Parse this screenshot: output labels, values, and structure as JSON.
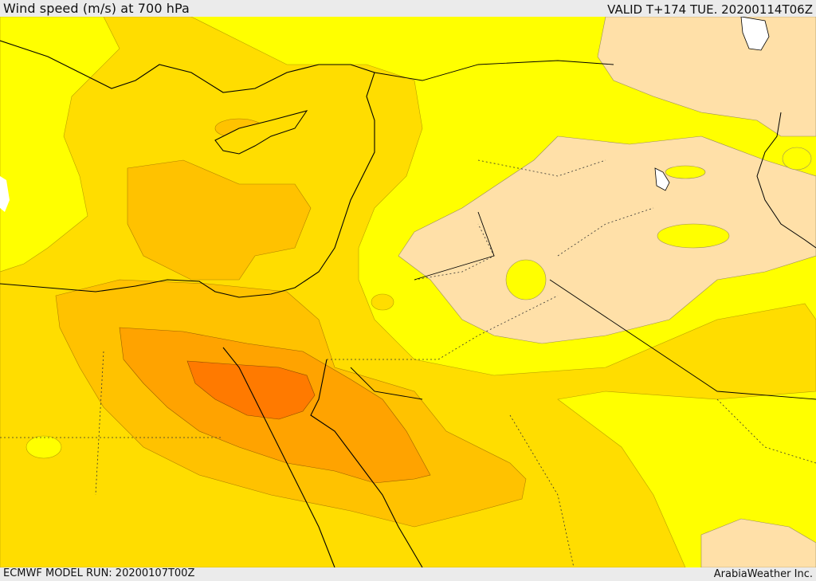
{
  "header": {
    "title": "Wind speed (m/s) at 700 hPa",
    "valid": "VALID T+174 TUE. 20200114T06Z"
  },
  "footer": {
    "model_run": "ECMWF MODEL RUN: 20200107T00Z",
    "credit": "ArabiaWeather Inc."
  },
  "colors": {
    "wind_lowest": "#ffffff",
    "wind_low": "#ffff00",
    "wind_moderate": "#ffdd00",
    "wind_fresh": "#ffc200",
    "wind_strong": "#ffa300",
    "wind_strongest": "#ff7a00",
    "calm_zone": "#ffe0a8",
    "coastline": "#000000",
    "border": "#333333"
  }
}
